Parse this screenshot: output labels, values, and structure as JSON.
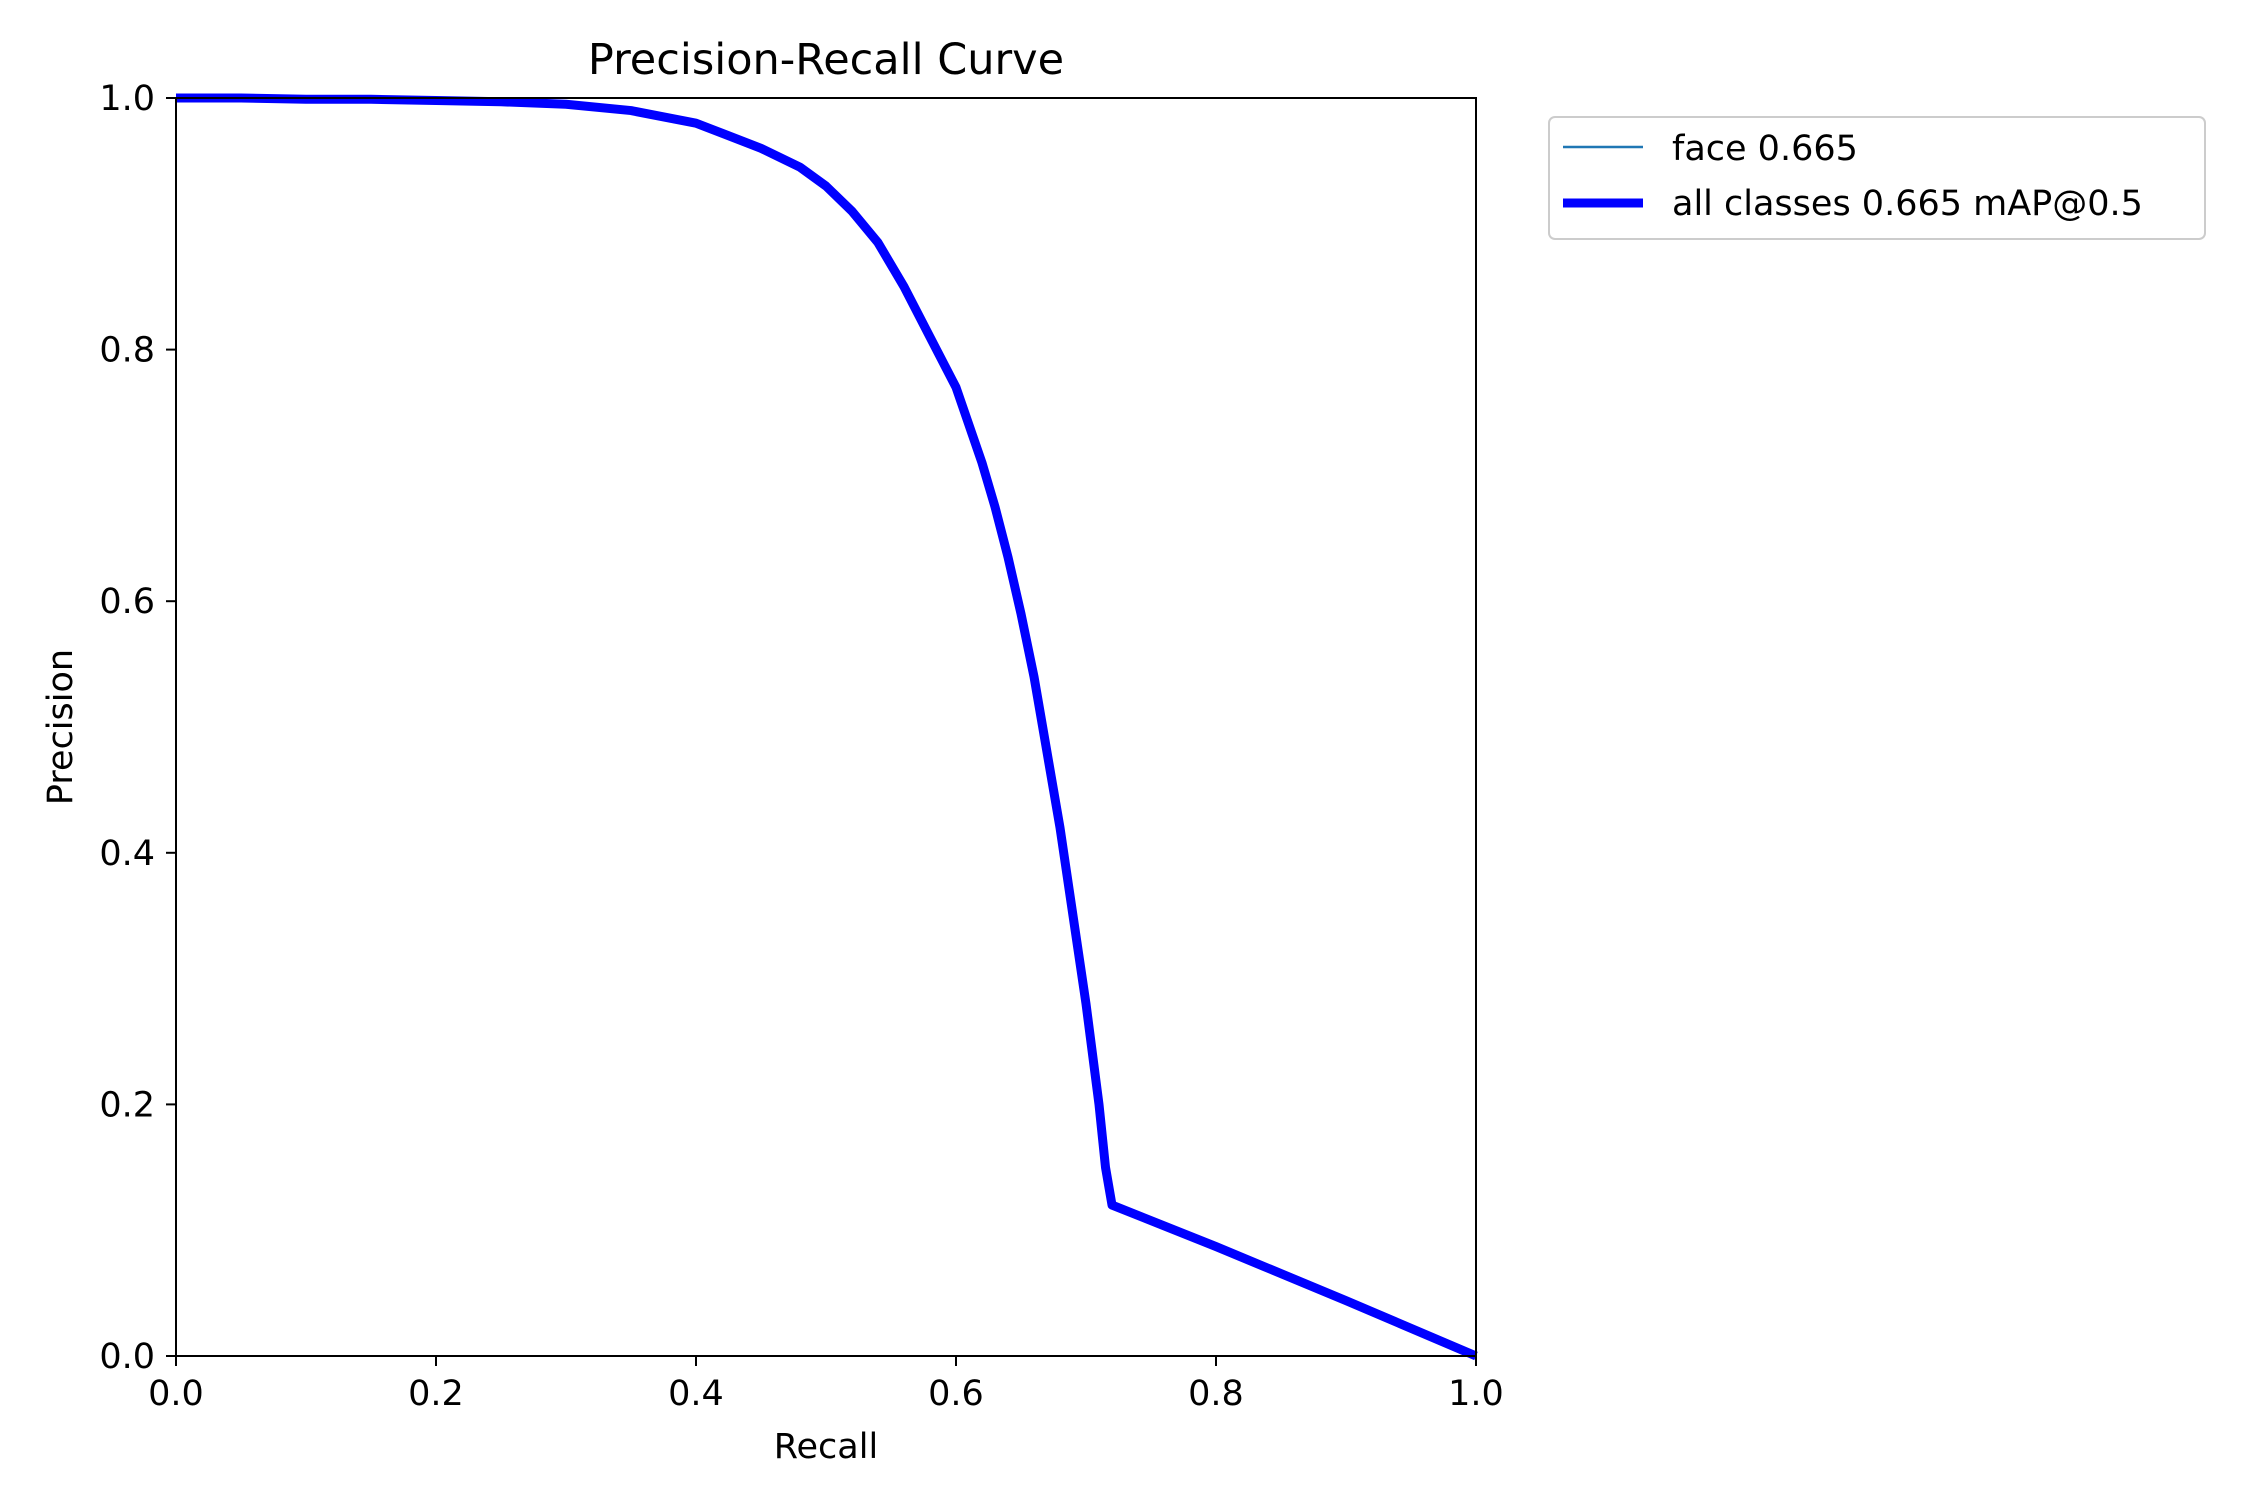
{
  "chart_data": {
    "type": "line",
    "title": "Precision-Recall Curve",
    "xlabel": "Recall",
    "ylabel": "Precision",
    "xlim": [
      0.0,
      1.0
    ],
    "ylim": [
      0.0,
      1.0
    ],
    "xticks": [
      "0.0",
      "0.2",
      "0.4",
      "0.6",
      "0.8",
      "1.0"
    ],
    "yticks": [
      "0.0",
      "0.2",
      "0.4",
      "0.6",
      "0.8",
      "1.0"
    ],
    "grid": false,
    "legend_position": "outside upper right",
    "series": [
      {
        "name": "face 0.665",
        "color": "#1f77b4",
        "style": "thin",
        "x": [
          0.0,
          0.05,
          0.1,
          0.15,
          0.2,
          0.25,
          0.3,
          0.35,
          0.4,
          0.42,
          0.45,
          0.48,
          0.5,
          0.52,
          0.54,
          0.56,
          0.58,
          0.6,
          0.61,
          0.62,
          0.63,
          0.64,
          0.65,
          0.66,
          0.67,
          0.68,
          0.69,
          0.7,
          0.71,
          0.715,
          0.72,
          0.8,
          0.9,
          1.0
        ],
        "y": [
          1.0,
          1.0,
          0.999,
          0.999,
          0.998,
          0.997,
          0.995,
          0.99,
          0.98,
          0.972,
          0.96,
          0.945,
          0.93,
          0.91,
          0.885,
          0.85,
          0.81,
          0.77,
          0.74,
          0.71,
          0.675,
          0.635,
          0.59,
          0.54,
          0.48,
          0.42,
          0.35,
          0.28,
          0.2,
          0.15,
          0.12,
          0.087,
          0.044,
          0.0
        ]
      },
      {
        "name": "all classes 0.665 mAP@0.5",
        "color": "#0000ff",
        "style": "thick",
        "x": [
          0.0,
          0.05,
          0.1,
          0.15,
          0.2,
          0.25,
          0.3,
          0.35,
          0.4,
          0.42,
          0.45,
          0.48,
          0.5,
          0.52,
          0.54,
          0.56,
          0.58,
          0.6,
          0.61,
          0.62,
          0.63,
          0.64,
          0.65,
          0.66,
          0.67,
          0.68,
          0.69,
          0.7,
          0.71,
          0.715,
          0.72,
          0.8,
          0.9,
          1.0
        ],
        "y": [
          1.0,
          1.0,
          0.999,
          0.999,
          0.998,
          0.997,
          0.995,
          0.99,
          0.98,
          0.972,
          0.96,
          0.945,
          0.93,
          0.91,
          0.885,
          0.85,
          0.81,
          0.77,
          0.74,
          0.71,
          0.675,
          0.635,
          0.59,
          0.54,
          0.48,
          0.42,
          0.35,
          0.28,
          0.2,
          0.15,
          0.12,
          0.087,
          0.044,
          0.0
        ]
      }
    ]
  }
}
